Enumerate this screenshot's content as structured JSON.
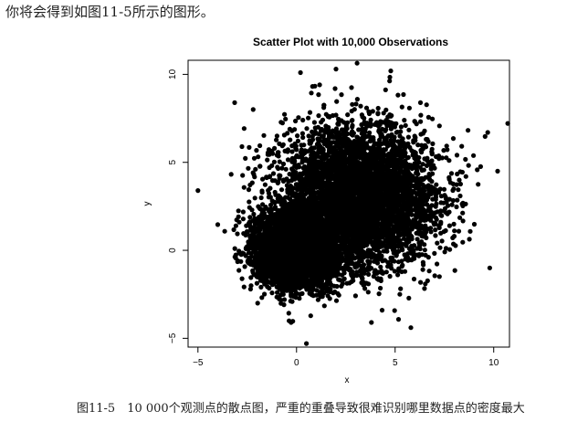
{
  "page": {
    "intro_text": "你将会得到如图11-5所示的图形。",
    "caption": "图11-5　10 000个观测点的散点图，严重的重叠导致很难识别哪里数据点的密度最大"
  },
  "chart_data": {
    "type": "scatter",
    "title": "Scatter Plot with 10,000 Observations",
    "xlabel": "x",
    "ylabel": "y",
    "n_points": 10000,
    "xlim": [
      -5.5,
      10.8
    ],
    "ylim": [
      -5.5,
      10.8
    ],
    "x_ticks": [
      -5,
      0,
      5,
      10
    ],
    "x_tick_labels": [
      "−5",
      "0",
      "5",
      "10"
    ],
    "y_ticks": [
      -5,
      0,
      5,
      10
    ],
    "y_tick_labels": [
      "−5",
      "0",
      "5",
      "10"
    ],
    "grid": false,
    "legend": "none",
    "marker_color": "#000000",
    "clusters": [
      {
        "center": [
          0,
          0
        ],
        "sd": 1
      },
      {
        "center": [
          3,
          3
        ],
        "sd": 2
      }
    ],
    "notable_points": [
      {
        "x": -5,
        "y": 3.4
      },
      {
        "x": 2,
        "y": 10.3
      },
      {
        "x": 0.2,
        "y": 10.1
      },
      {
        "x": 0.5,
        "y": -5.3
      },
      {
        "x": 3.8,
        "y": -4.1
      },
      {
        "x": 10.2,
        "y": 4.5
      },
      {
        "x": 9.8,
        "y": -1
      },
      {
        "x": -2.2,
        "y": 8
      },
      {
        "x": 9.7,
        "y": 6.7
      }
    ]
  }
}
